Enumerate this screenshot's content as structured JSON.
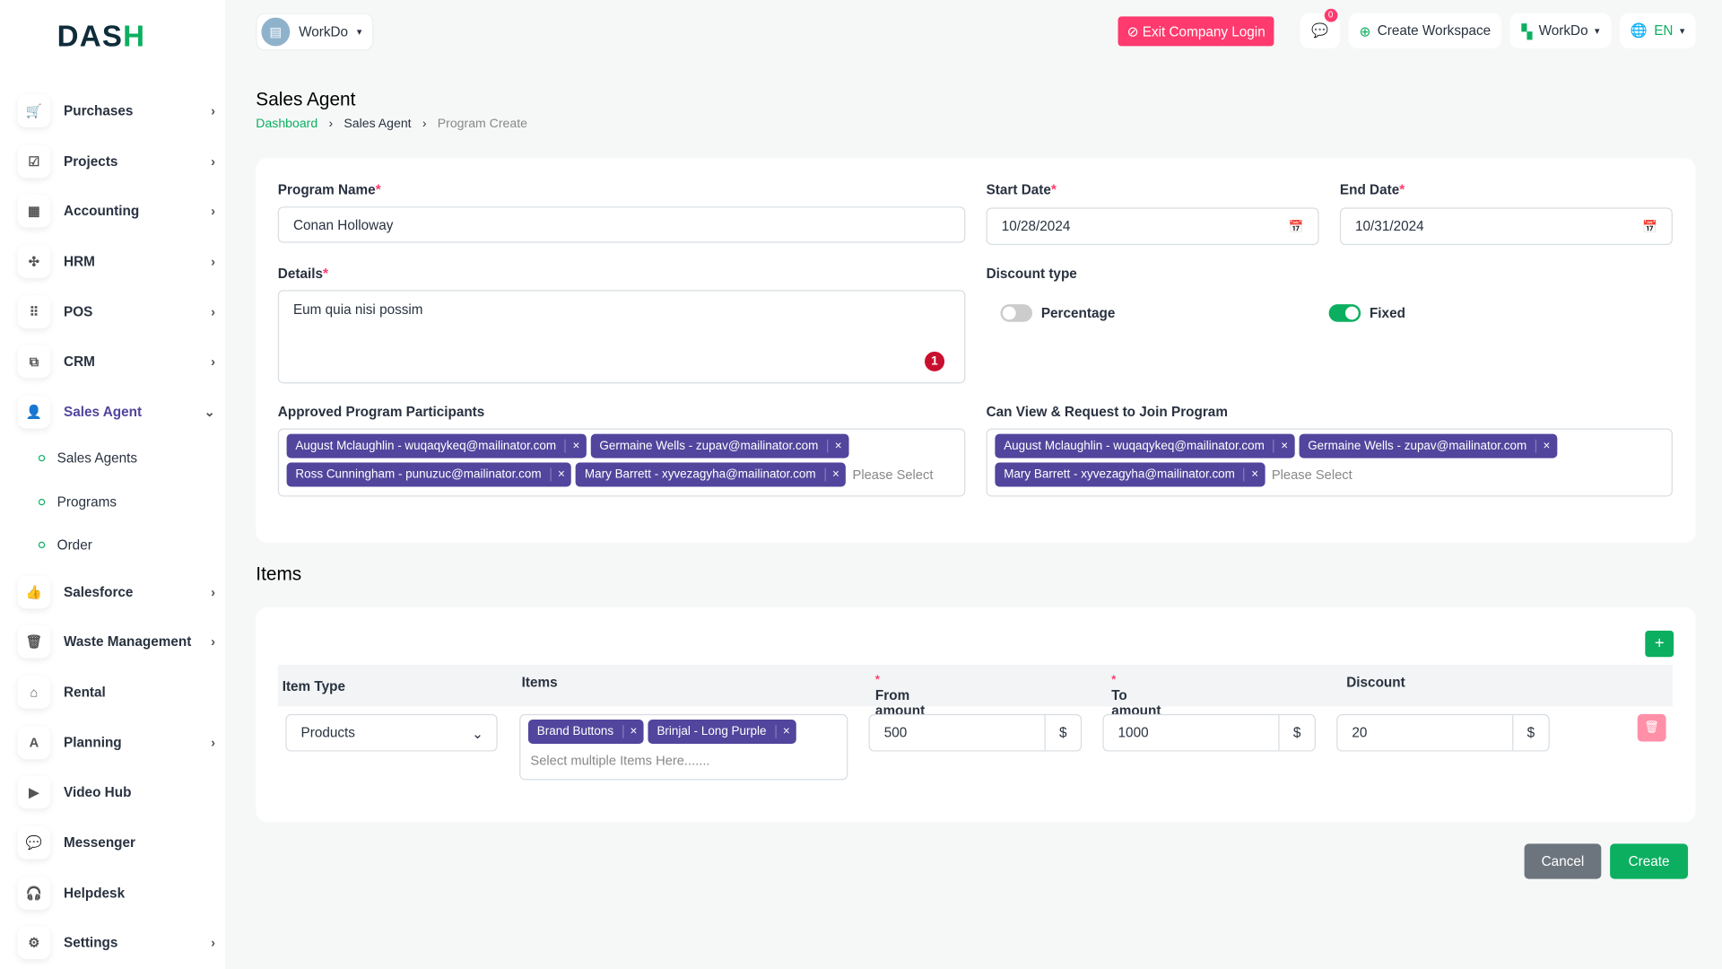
{
  "brand": {
    "logo_a": "DAS",
    "logo_b": "H"
  },
  "sidebar": {
    "items": [
      {
        "label": "Purchases",
        "icon": "cart-icon",
        "glyph": "🛒",
        "chevron": true
      },
      {
        "label": "Projects",
        "icon": "checkbox-icon",
        "glyph": "☑",
        "chevron": true
      },
      {
        "label": "Accounting",
        "icon": "grid-icon",
        "glyph": "▦",
        "chevron": true
      },
      {
        "label": "HRM",
        "icon": "people-icon",
        "glyph": "✣",
        "chevron": true
      },
      {
        "label": "POS",
        "icon": "dots-grid-icon",
        "glyph": "⠿",
        "chevron": true
      },
      {
        "label": "CRM",
        "icon": "copy-icon",
        "glyph": "⧉",
        "chevron": true
      },
      {
        "label": "Sales Agent",
        "icon": "user-check-icon",
        "glyph": "👤",
        "chevron": true,
        "active": true
      }
    ],
    "sub": [
      {
        "label": "Sales Agents"
      },
      {
        "label": "Programs"
      },
      {
        "label": "Order"
      }
    ],
    "items2": [
      {
        "label": "Salesforce",
        "icon": "thumbs-up-icon",
        "glyph": "👍",
        "chevron": true
      },
      {
        "label": "Waste Management",
        "icon": "trash-icon",
        "glyph": "🗑",
        "chevron": true
      },
      {
        "label": "Rental",
        "icon": "home-icon",
        "glyph": "⌂",
        "chevron": false
      },
      {
        "label": "Planning",
        "icon": "planning-icon",
        "glyph": "A",
        "chevron": true
      },
      {
        "label": "Video Hub",
        "icon": "video-icon",
        "glyph": "▶",
        "chevron": false
      },
      {
        "label": "Messenger",
        "icon": "chat-icon",
        "glyph": "💬",
        "chevron": false
      },
      {
        "label": "Helpdesk",
        "icon": "headset-icon",
        "glyph": "🎧",
        "chevron": false
      },
      {
        "label": "Settings",
        "icon": "gear-icon",
        "glyph": "⚙",
        "chevron": true
      }
    ]
  },
  "header": {
    "workspace": "WorkDo",
    "exit_label": "Exit Company Login",
    "msg_count": "0",
    "create_ws": "Create Workspace",
    "workdo": "WorkDo",
    "lang": "EN"
  },
  "page": {
    "title": "Sales Agent",
    "breadcrumb": [
      "Dashboard",
      "Sales Agent",
      "Program Create"
    ]
  },
  "form": {
    "program_name_label": "Program Name",
    "program_name": "Conan Holloway",
    "start_label": "Start Date",
    "start": "10/28/2024",
    "end_label": "End Date",
    "end": "10/31/2024",
    "details_label": "Details",
    "details": "Eum quia nisi possim",
    "grammar_count": "1",
    "discount_label": "Discount type",
    "percentage": "Percentage",
    "fixed": "Fixed",
    "approved_label": "Approved Program Participants",
    "approved": [
      "August Mclaughlin - wuqaqykeq@mailinator.com",
      "Germaine Wells - zupav@mailinator.com",
      "Ross Cunningham - punuzuc@mailinator.com",
      "Mary Barrett - xyvezagyha@mailinator.com"
    ],
    "view_label": "Can View & Request to Join Program",
    "view": [
      "August Mclaughlin - wuqaqykeq@mailinator.com",
      "Germaine Wells - zupav@mailinator.com",
      "Mary Barrett - xyvezagyha@mailinator.com"
    ],
    "placeholder": "Please Select"
  },
  "items": {
    "title": "Items",
    "headers": [
      "Item Type",
      "Items",
      "From amount",
      "To amount",
      "Discount"
    ],
    "row": {
      "type": "Products",
      "items": [
        "Brand Buttons",
        "Brinjal - Long Purple"
      ],
      "items_placeholder": "Select multiple Items Here.......",
      "from": "500",
      "to": "1000",
      "discount": "20",
      "currency": "$"
    }
  },
  "actions": {
    "cancel": "Cancel",
    "create": "Create"
  },
  "colors": {
    "accent": "#0caf60",
    "chip": "#51459d",
    "danger": "#ff3a6e"
  }
}
